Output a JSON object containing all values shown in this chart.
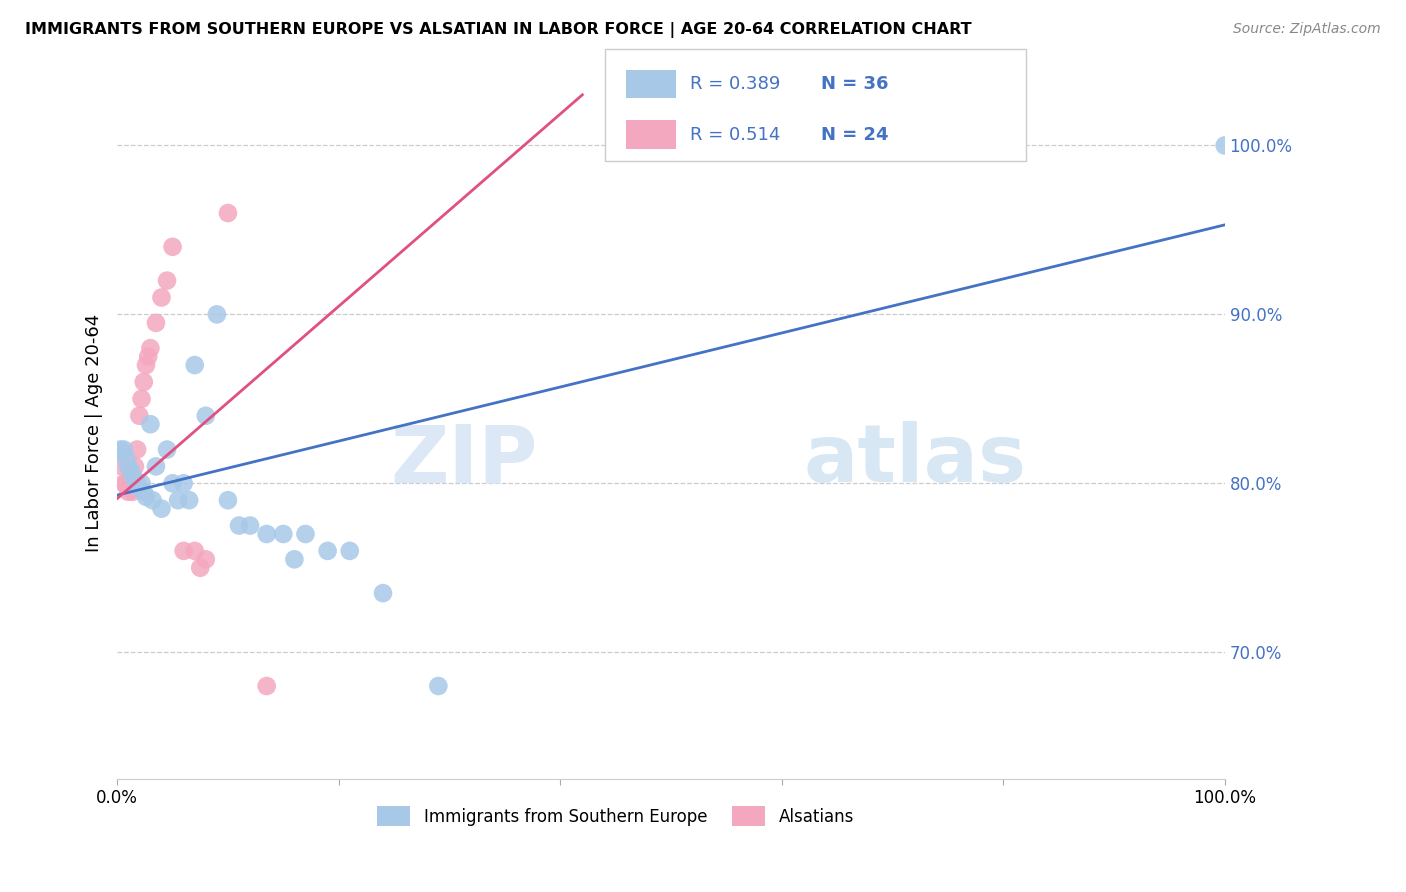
{
  "title": "IMMIGRANTS FROM SOUTHERN EUROPE VS ALSATIAN IN LABOR FORCE | AGE 20-64 CORRELATION CHART",
  "source": "Source: ZipAtlas.com",
  "ylabel": "In Labor Force | Age 20-64",
  "xlim": [
    0.0,
    1.0
  ],
  "ylim": [
    0.625,
    1.035
  ],
  "ytick_positions": [
    0.7,
    0.8,
    0.9,
    1.0
  ],
  "ytick_labels": [
    "70.0%",
    "80.0%",
    "90.0%",
    "100.0%"
  ],
  "blue_R": 0.389,
  "blue_N": 36,
  "pink_R": 0.514,
  "pink_N": 24,
  "blue_color": "#a8c8e8",
  "pink_color": "#f4a8c0",
  "blue_line_color": "#4472c4",
  "pink_line_color": "#e05080",
  "tick_color": "#4472c4",
  "watermark_color": "#dce8f5",
  "blue_scatter_x": [
    0.003,
    0.006,
    0.008,
    0.01,
    0.012,
    0.014,
    0.016,
    0.018,
    0.02,
    0.022,
    0.024,
    0.026,
    0.03,
    0.032,
    0.035,
    0.04,
    0.045,
    0.05,
    0.055,
    0.06,
    0.065,
    0.07,
    0.08,
    0.09,
    0.1,
    0.11,
    0.12,
    0.135,
    0.15,
    0.16,
    0.17,
    0.19,
    0.21,
    0.24,
    0.29,
    1.0
  ],
  "blue_scatter_y": [
    0.82,
    0.82,
    0.815,
    0.81,
    0.808,
    0.805,
    0.802,
    0.8,
    0.797,
    0.8,
    0.795,
    0.792,
    0.835,
    0.79,
    0.81,
    0.785,
    0.82,
    0.8,
    0.79,
    0.8,
    0.79,
    0.87,
    0.84,
    0.9,
    0.79,
    0.775,
    0.775,
    0.77,
    0.77,
    0.755,
    0.77,
    0.76,
    0.76,
    0.735,
    0.68,
    1.0
  ],
  "pink_scatter_x": [
    0.004,
    0.006,
    0.008,
    0.01,
    0.012,
    0.014,
    0.016,
    0.018,
    0.02,
    0.022,
    0.024,
    0.026,
    0.028,
    0.03,
    0.035,
    0.04,
    0.045,
    0.05,
    0.06,
    0.07,
    0.075,
    0.08,
    0.1,
    0.135
  ],
  "pink_scatter_y": [
    0.81,
    0.8,
    0.8,
    0.795,
    0.8,
    0.795,
    0.81,
    0.82,
    0.84,
    0.85,
    0.86,
    0.87,
    0.875,
    0.88,
    0.895,
    0.91,
    0.92,
    0.94,
    0.76,
    0.76,
    0.75,
    0.755,
    0.96,
    0.68
  ],
  "blue_line_x0": 0.0,
  "blue_line_x1": 1.0,
  "blue_line_y0": 0.793,
  "blue_line_y1": 0.953,
  "pink_line_x0": 0.0,
  "pink_line_x1": 0.42,
  "pink_line_y0": 0.791,
  "pink_line_y1": 1.03
}
